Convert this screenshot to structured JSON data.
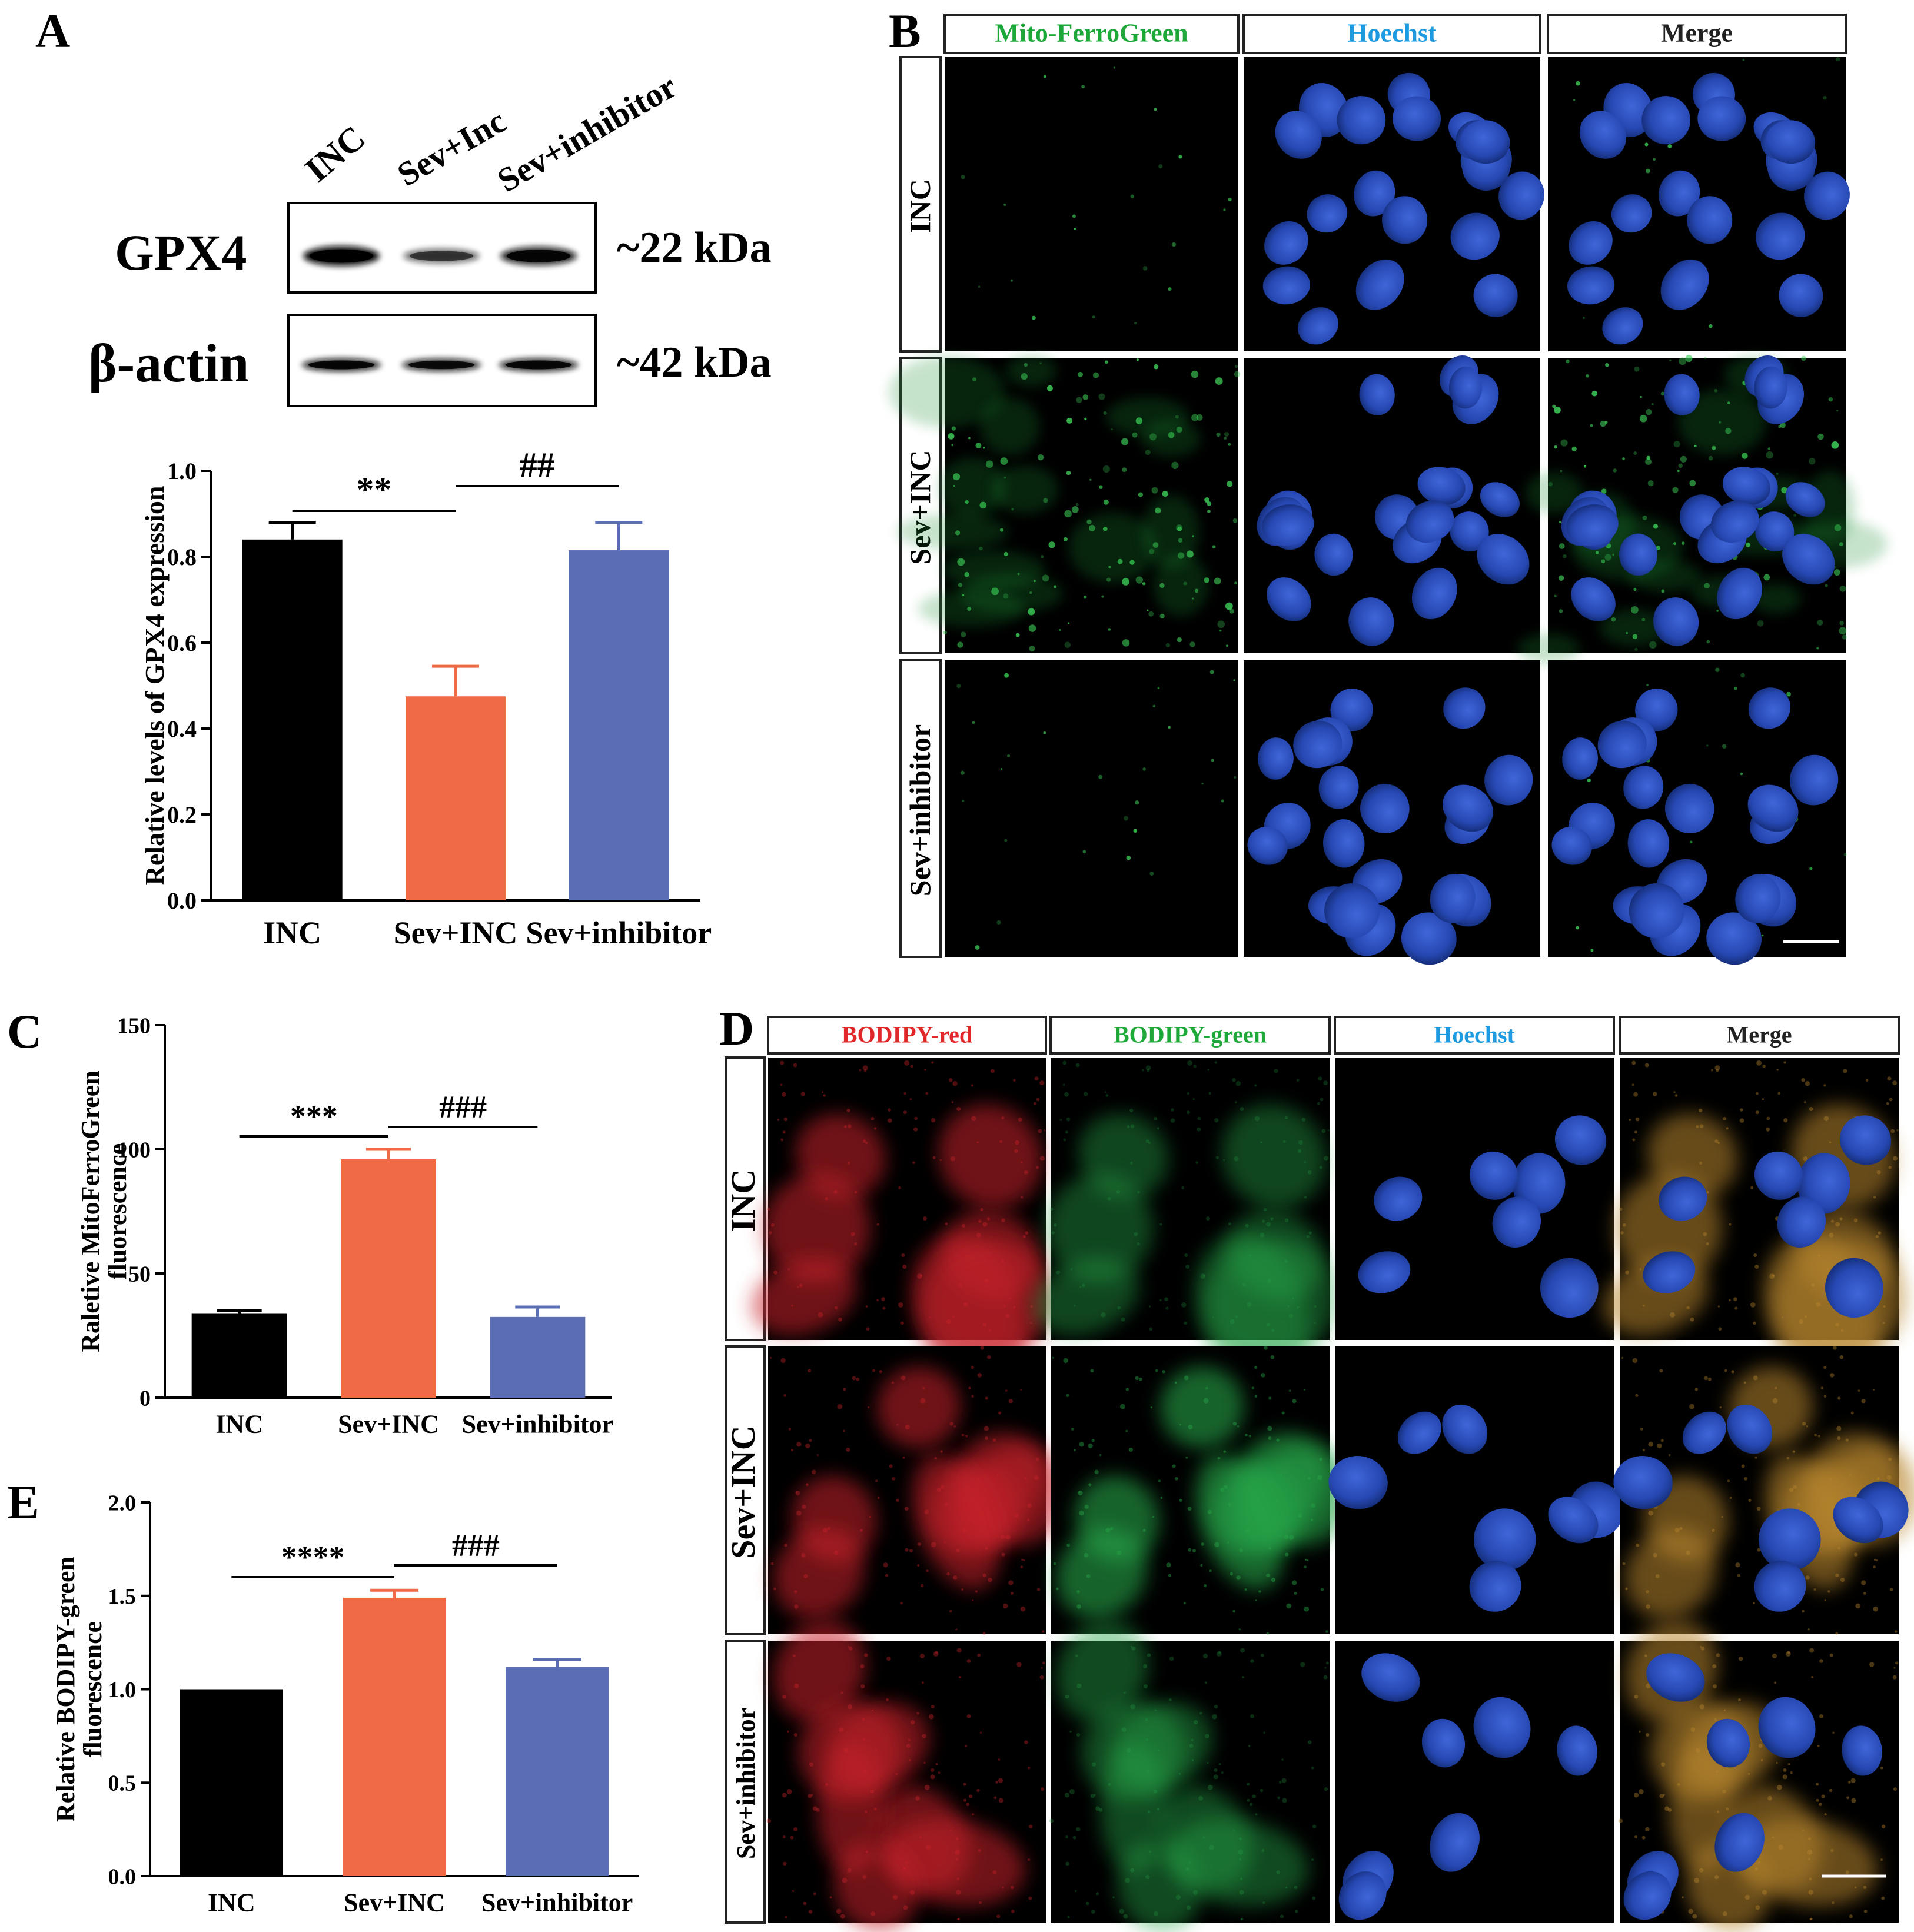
{
  "panels": {
    "A": {
      "letter": "A",
      "lane_labels": [
        "INC",
        "Sev+Inc",
        "Sev+inhibitor"
      ],
      "blots": [
        {
          "label": "GPX4",
          "size": "~22 kDa",
          "intensities": [
            1.0,
            0.45,
            0.85
          ]
        },
        {
          "label": "β-actin",
          "size": "~42 kDa",
          "intensities": [
            0.85,
            0.8,
            0.85
          ]
        }
      ],
      "chart_data": {
        "type": "bar",
        "categories": [
          "INC",
          "Sev+INC",
          "Sev+inhibitor"
        ],
        "values": [
          0.84,
          0.475,
          0.815
        ],
        "errors": [
          0.04,
          0.07,
          0.065
        ],
        "colors": [
          "#000000",
          "#EF6A45",
          "#5B6EB5"
        ],
        "ylabel": "Relative levels of GPX4 expression",
        "ylim": [
          0,
          1.0
        ],
        "yticks": [
          "0.0",
          "0.2",
          "0.4",
          "0.6",
          "0.8",
          "1.0"
        ],
        "significance": [
          {
            "label": "**",
            "from": "INC",
            "to": "Sev+INC"
          },
          {
            "label": "##",
            "from": "Sev+INC",
            "to": "Sev+inhibitor"
          }
        ]
      }
    },
    "B": {
      "letter": "B",
      "columns": [
        "Mito-FerroGreen",
        "Hoechst",
        "Merge"
      ],
      "column_colors": [
        "#1FA83A",
        "#1E9BE0",
        "#222222"
      ],
      "rows": [
        "INC",
        "Sev+INC",
        "Sev+inhibitor"
      ]
    },
    "C": {
      "letter": "C",
      "chart_data": {
        "type": "bar",
        "categories": [
          "INC",
          "Sev+INC",
          "Sev+inhibitor"
        ],
        "values": [
          34,
          96,
          32.5
        ],
        "errors": [
          1,
          4,
          4
        ],
        "colors": [
          "#000000",
          "#EF6A45",
          "#5B6EB5"
        ],
        "ylabel_lines": [
          "Raletive MitoFerroGreen",
          "fluorescence"
        ],
        "ylim": [
          0,
          150
        ],
        "yticks": [
          "0",
          "50",
          "100",
          "150"
        ],
        "significance": [
          {
            "label": "***",
            "from": "INC",
            "to": "Sev+INC"
          },
          {
            "label": "###",
            "from": "Sev+INC",
            "to": "Sev+inhibitor"
          }
        ]
      }
    },
    "D": {
      "letter": "D",
      "columns": [
        "BODIPY-red",
        "BODIPY-green",
        "Hoechst",
        "Merge"
      ],
      "column_colors": [
        "#E0282A",
        "#1FA83A",
        "#1E9BE0",
        "#222222"
      ],
      "rows": [
        "INC",
        "Sev+INC",
        "Sev+inhibitor"
      ]
    },
    "E": {
      "letter": "E",
      "chart_data": {
        "type": "bar",
        "categories": [
          "INC",
          "Sev+INC",
          "Sev+inhibitor"
        ],
        "values": [
          1.0,
          1.49,
          1.12
        ],
        "errors": [
          0,
          0.04,
          0.04
        ],
        "colors": [
          "#000000",
          "#EF6A45",
          "#5B6EB5"
        ],
        "ylabel_lines": [
          "Relative BODIPY-green",
          "fluorescence"
        ],
        "ylim": [
          0,
          2.0
        ],
        "yticks": [
          "0.0",
          "0.5",
          "1.0",
          "1.5",
          "2.0"
        ],
        "significance": [
          {
            "label": "****",
            "from": "INC",
            "to": "Sev+INC"
          },
          {
            "label": "###",
            "from": "Sev+INC",
            "to": "Sev+inhibitor"
          }
        ]
      }
    }
  }
}
